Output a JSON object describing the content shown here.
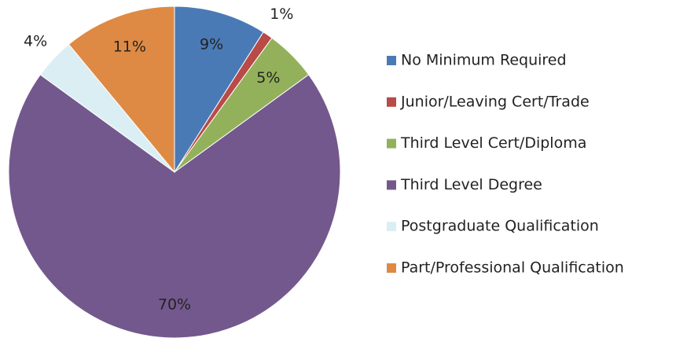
{
  "chart_data": {
    "type": "pie",
    "categories": [
      "No Minimum Required",
      "Junior/Leaving Cert/Trade",
      "Third Level Cert/Diploma",
      "Third Level Degree",
      "Postgraduate Qualification",
      "Part/Professional Qualification"
    ],
    "values": [
      9,
      1,
      5,
      70,
      4,
      11
    ],
    "value_labels": [
      "9%",
      "1%",
      "5%",
      "70%",
      "4%",
      "11%"
    ],
    "colors": [
      "#4a7ab5",
      "#b84a47",
      "#93b15a",
      "#73588d",
      "#daeef3",
      "#de8a44"
    ],
    "legend": "right"
  }
}
